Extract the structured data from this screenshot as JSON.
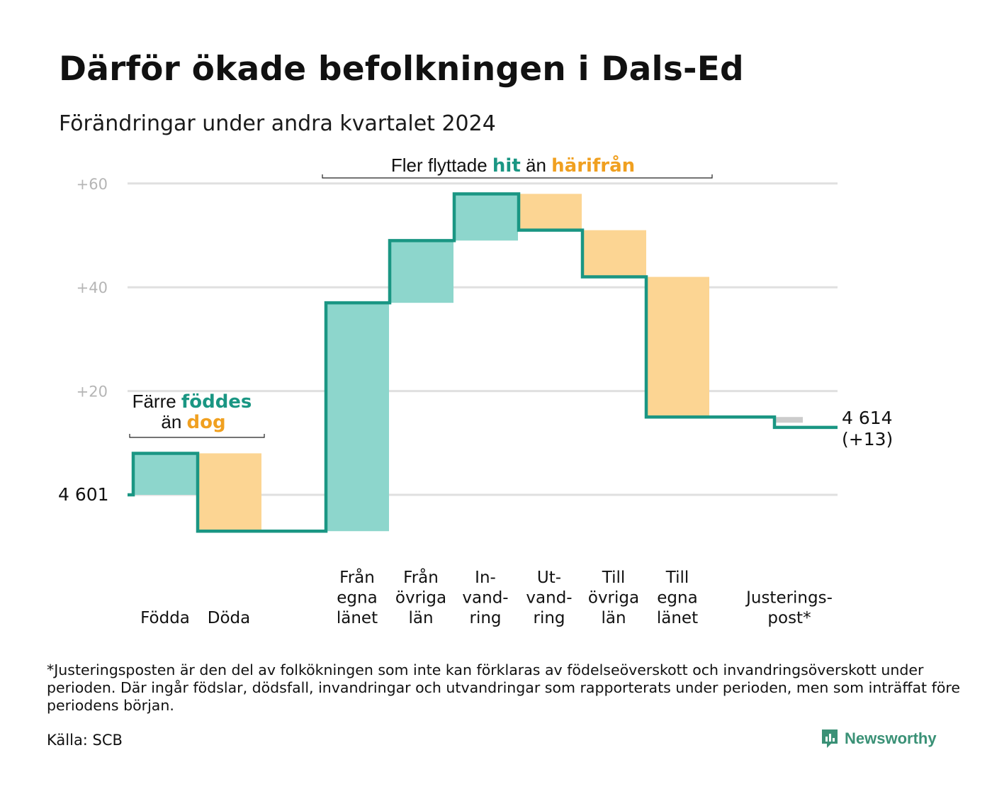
{
  "title": "Därför ökade befolkningen i Dals-Ed",
  "subtitle": "Förändringar under andra kvartalet 2024",
  "colors": {
    "increase": "#8dd6cc",
    "decrease": "#fcd593",
    "adjustment": "#cccccc",
    "line": "#1a9683",
    "teal_text": "#1a9683",
    "orange_text": "#f0a020",
    "grid": "#e0e0e0"
  },
  "chart_data": {
    "type": "waterfall",
    "start_label": "4  601",
    "start_value": 4601,
    "end_label_1": "4 614",
    "end_label_2": "(+13)",
    "end_value": 4614,
    "y_ticks": [
      "+60",
      "+40",
      "+20"
    ],
    "ylim": [
      -7,
      60
    ],
    "steps": [
      {
        "label_lines": [
          "Födda"
        ],
        "delta": 8,
        "kind": "increase"
      },
      {
        "label_lines": [
          "Döda"
        ],
        "delta": -15,
        "kind": "decrease"
      },
      {
        "label_lines": [
          "Från",
          "egna",
          "länet"
        ],
        "delta": 44,
        "kind": "increase"
      },
      {
        "label_lines": [
          "Från",
          "övriga",
          "län"
        ],
        "delta": 12,
        "kind": "increase"
      },
      {
        "label_lines": [
          "In-",
          "vand-",
          "ring"
        ],
        "delta": 9,
        "kind": "increase"
      },
      {
        "label_lines": [
          "Ut-",
          "vand-",
          "ring"
        ],
        "delta": -7,
        "kind": "decrease"
      },
      {
        "label_lines": [
          "Till",
          "övriga",
          "län"
        ],
        "delta": -9,
        "kind": "decrease"
      },
      {
        "label_lines": [
          "Till",
          "egna",
          "länet"
        ],
        "delta": -27,
        "kind": "decrease"
      },
      {
        "label_lines": [
          "Justerings-",
          "post*"
        ],
        "delta": -2,
        "kind": "adjustment"
      }
    ],
    "annotation_migration": {
      "prefix": "Fler flyttade",
      "teal": "hit",
      "mid": "än",
      "orange": "härifrån"
    },
    "annotation_births": {
      "line1_prefix": "Färre",
      "line1_teal": "föddes",
      "line2_prefix": "än",
      "line2_orange": "dog"
    }
  },
  "footnote": "*Justeringsposten är den del av folkökningen som inte kan förklaras av födelseöverskott och invandringsöverskott under perioden. Där ingår födslar, dödsfall, invandringar och utvandringar som rapporterats under perioden, men som inträffat före periodens början.",
  "source": "Källa: SCB",
  "logo": {
    "text": "Newsworthy",
    "icon": "newsworthy-chart-icon"
  }
}
